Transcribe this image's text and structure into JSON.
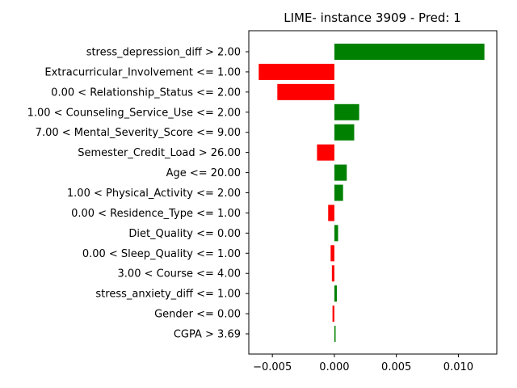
{
  "chart_data": {
    "type": "bar",
    "orientation": "horizontal",
    "title": "LIME- instance 3909 - Pred: 1",
    "xlabel": "",
    "ylabel": "",
    "xlim": [
      -0.0069,
      0.0131
    ],
    "xticks": [
      -0.005,
      0.0,
      0.005,
      0.01
    ],
    "xtick_labels": [
      "−0.005",
      "0.000",
      "0.005",
      "0.010"
    ],
    "grid": false,
    "positive_color": "#008000",
    "negative_color": "#ff0000",
    "categories": [
      "stress_depression_diff > 2.00",
      "Extracurricular_Involvement <= 1.00",
      "0.00 < Relationship_Status <= 2.00",
      "1.00 < Counseling_Service_Use <= 2.00",
      "7.00 < Mental_Severity_Score <= 9.00",
      "Semester_Credit_Load > 26.00",
      "Age <= 20.00",
      "1.00 < Physical_Activity <= 2.00",
      "0.00 < Residence_Type <= 1.00",
      "Diet_Quality <= 0.00",
      "0.00 < Sleep_Quality <= 1.00",
      "3.00 < Course <= 4.00",
      "stress_anxiety_diff <= 1.00",
      "Gender <= 0.00",
      "CGPA > 3.69"
    ],
    "values": [
      0.0121,
      -0.0061,
      -0.0046,
      0.002,
      0.0016,
      -0.0014,
      0.001,
      0.0007,
      -0.0005,
      0.0003,
      -0.0003,
      -0.0002,
      0.0002,
      -0.00015,
      0.0001
    ]
  }
}
